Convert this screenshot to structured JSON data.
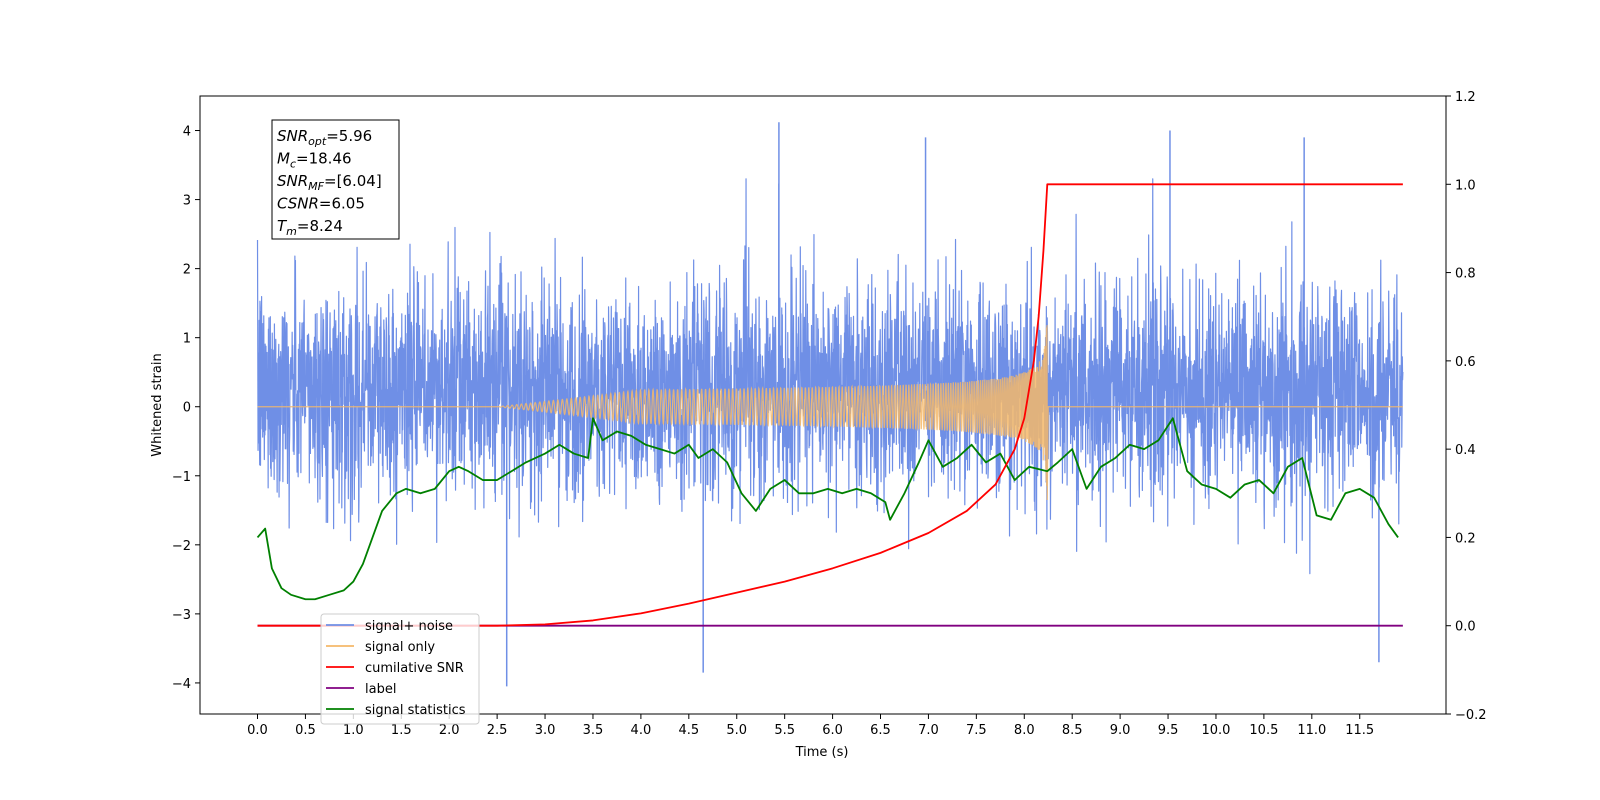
{
  "chart_data": {
    "type": "line",
    "title": "",
    "xlabel": "Time (s)",
    "ylabel": "Whitened strain",
    "y2label": "",
    "xlim": [
      -0.6,
      12.4
    ],
    "ylim": [
      -4.45,
      4.5
    ],
    "y2lim": [
      -0.2,
      1.2
    ],
    "x_ticks": [
      0.0,
      0.5,
      1.0,
      1.5,
      2.0,
      2.5,
      3.0,
      3.5,
      4.0,
      4.5,
      5.0,
      5.5,
      6.0,
      6.5,
      7.0,
      7.5,
      8.0,
      8.5,
      9.0,
      9.5,
      10.0,
      10.5,
      11.0,
      11.5
    ],
    "x_tick_labels": [
      "0.0",
      "0.5",
      "1.0",
      "1.5",
      "2.0",
      "2.5",
      "3.0",
      "3.5",
      "4.0",
      "4.5",
      "5.0",
      "5.5",
      "6.0",
      "6.5",
      "7.0",
      "7.5",
      "8.0",
      "8.5",
      "9.0",
      "9.5",
      "10.0",
      "10.5",
      "11.0",
      "11.5"
    ],
    "y_ticks": [
      -4,
      -3,
      -2,
      -1,
      0,
      1,
      2,
      3,
      4
    ],
    "y_tick_labels": [
      "−4",
      "−3",
      "−2",
      "−1",
      "0",
      "1",
      "2",
      "3",
      "4"
    ],
    "y2_ticks": [
      -0.2,
      0.0,
      0.2,
      0.4,
      0.6,
      0.8,
      1.0,
      1.2
    ],
    "y2_tick_labels": [
      "−0.2",
      "0.0",
      "0.2",
      "0.4",
      "0.6",
      "0.8",
      "1.0",
      "1.2"
    ],
    "grid": false,
    "legend_position": "lower-left",
    "colors": {
      "signal_noise": "#6f8fe6",
      "signal_only": "#f5b86a",
      "cumulative_snr": "#ff0000",
      "label": "#800080",
      "signal_statistics": "#008000"
    },
    "series": [
      {
        "name": "signal+ noise",
        "axis": "left",
        "description_values": "dense noisy strain, roughly uniform envelope over 0.0-11.95 s",
        "envelope_typical": [
          -1.8,
          2.3
        ],
        "extremes": [
          {
            "x": 5.44,
            "y": 4.12
          },
          {
            "x": 10.92,
            "y": 3.9
          },
          {
            "x": 9.52,
            "y": 4.0
          },
          {
            "x": 6.97,
            "y": 3.9
          },
          {
            "x": 2.6,
            "y": -4.05
          },
          {
            "x": 4.65,
            "y": -3.85
          },
          {
            "x": 11.7,
            "y": -3.7
          }
        ]
      },
      {
        "name": "signal only",
        "axis": "left",
        "chirp_end_x": 8.24,
        "peak_amplitude": 1.4,
        "y_flat": 0.0
      },
      {
        "name": "cumilative SNR",
        "axis": "right",
        "x": [
          0.0,
          2.5,
          3.0,
          3.5,
          4.0,
          4.5,
          5.0,
          5.5,
          6.0,
          6.5,
          7.0,
          7.4,
          7.7,
          7.9,
          8.0,
          8.1,
          8.15,
          8.2,
          8.24,
          11.95
        ],
        "values": [
          0.0,
          0.0,
          0.003,
          0.012,
          0.028,
          0.05,
          0.075,
          0.1,
          0.13,
          0.165,
          0.21,
          0.26,
          0.32,
          0.4,
          0.47,
          0.6,
          0.7,
          0.85,
          1.0,
          1.0
        ]
      },
      {
        "name": "label",
        "axis": "right",
        "x": [
          0.0,
          11.95
        ],
        "values": [
          0.0,
          0.0
        ]
      },
      {
        "name": "signal statistics",
        "axis": "right",
        "x": [
          0.0,
          0.08,
          0.15,
          0.25,
          0.35,
          0.5,
          0.6,
          0.75,
          0.9,
          1.0,
          1.1,
          1.2,
          1.3,
          1.45,
          1.55,
          1.7,
          1.85,
          2.0,
          2.1,
          2.2,
          2.35,
          2.5,
          2.65,
          2.8,
          3.0,
          3.15,
          3.3,
          3.45,
          3.5,
          3.6,
          3.75,
          3.9,
          4.05,
          4.2,
          4.35,
          4.5,
          4.6,
          4.75,
          4.9,
          5.05,
          5.2,
          5.35,
          5.5,
          5.65,
          5.8,
          5.95,
          6.1,
          6.25,
          6.4,
          6.55,
          6.6,
          6.75,
          6.9,
          7.0,
          7.15,
          7.3,
          7.45,
          7.6,
          7.75,
          7.9,
          8.05,
          8.24,
          8.35,
          8.5,
          8.65,
          8.8,
          8.95,
          9.1,
          9.25,
          9.4,
          9.55,
          9.7,
          9.85,
          10.0,
          10.15,
          10.3,
          10.45,
          10.6,
          10.75,
          10.9,
          11.05,
          11.2,
          11.35,
          11.5,
          11.65,
          11.8,
          11.9
        ],
        "values": [
          0.2,
          0.22,
          0.13,
          0.085,
          0.07,
          0.06,
          0.06,
          0.07,
          0.08,
          0.1,
          0.14,
          0.2,
          0.26,
          0.3,
          0.31,
          0.3,
          0.31,
          0.35,
          0.36,
          0.35,
          0.33,
          0.33,
          0.35,
          0.37,
          0.39,
          0.41,
          0.39,
          0.38,
          0.47,
          0.42,
          0.44,
          0.43,
          0.41,
          0.4,
          0.39,
          0.41,
          0.38,
          0.4,
          0.37,
          0.3,
          0.26,
          0.31,
          0.33,
          0.3,
          0.3,
          0.31,
          0.3,
          0.31,
          0.3,
          0.28,
          0.24,
          0.3,
          0.37,
          0.42,
          0.36,
          0.38,
          0.41,
          0.37,
          0.39,
          0.33,
          0.36,
          0.35,
          0.37,
          0.4,
          0.31,
          0.36,
          0.38,
          0.41,
          0.4,
          0.42,
          0.47,
          0.35,
          0.32,
          0.31,
          0.29,
          0.32,
          0.33,
          0.3,
          0.36,
          0.38,
          0.25,
          0.24,
          0.3,
          0.31,
          0.29,
          0.23,
          0.2
        ]
      }
    ],
    "legend": [
      {
        "label": "signal+ noise",
        "color": "#6f8fe6"
      },
      {
        "label": "signal only",
        "color": "#f5b86a"
      },
      {
        "label": "cumilative SNR",
        "color": "#ff0000"
      },
      {
        "label": "label",
        "color": "#800080"
      },
      {
        "label": "signal statistics",
        "color": "#008000"
      }
    ],
    "annotation": [
      {
        "base": "SNR",
        "sub": "opt",
        "rest": "=5.96"
      },
      {
        "base": "M",
        "sub": "c",
        "rest": "=18.46"
      },
      {
        "base": "SNR",
        "sub": "MF",
        "rest": "=[6.04]"
      },
      {
        "base": "CSNR",
        "sub": "",
        "rest": "=6.05"
      },
      {
        "base": "T",
        "sub": "m",
        "rest": "=8.24"
      }
    ]
  }
}
